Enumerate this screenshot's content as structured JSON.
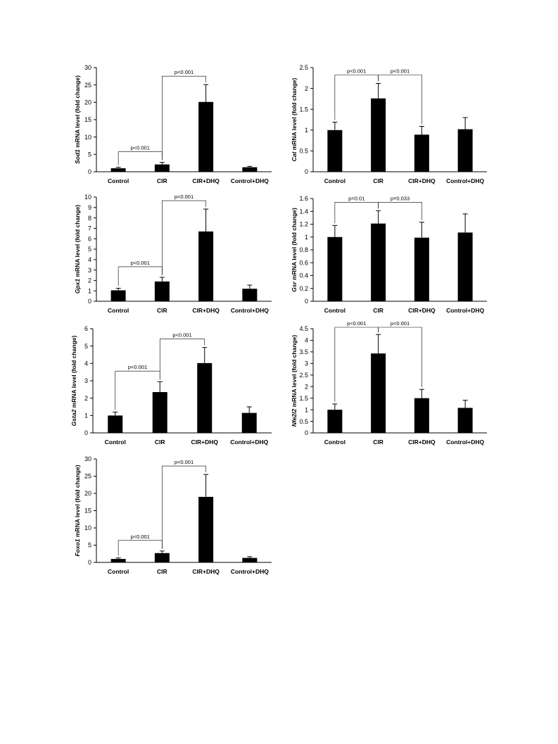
{
  "colors": {
    "bar": "#000000",
    "axis": "#000000",
    "background": "#ffffff"
  },
  "y_label_suffix": " mRNA level (fold change)",
  "chart_data": [
    {
      "type": "bar",
      "gene": "Sod1",
      "categories": [
        "Control",
        "CIR",
        "CIR+DHQ",
        "Control+DHQ"
      ],
      "values": [
        1.0,
        2.1,
        20.1,
        1.3
      ],
      "errors": [
        0.3,
        0.6,
        5.0,
        0.25
      ],
      "ylim": [
        0,
        30
      ],
      "yticks": [
        "0",
        "5",
        "10",
        "15",
        "20",
        "25",
        "30"
      ],
      "comparisons": [
        {
          "from": 0,
          "to": 1,
          "label": "p<0.001"
        },
        {
          "from": 1,
          "to": 2,
          "label": "p<0.001"
        }
      ]
    },
    {
      "type": "bar",
      "gene": "Cat",
      "categories": [
        "Control",
        "CIR",
        "CIR+DHQ",
        "Control+DHQ"
      ],
      "values": [
        1.0,
        1.76,
        0.89,
        1.02
      ],
      "errors": [
        0.19,
        0.36,
        0.2,
        0.28
      ],
      "ylim": [
        0,
        2.5
      ],
      "yticks": [
        "0",
        "0.5",
        "1",
        "1.5",
        "2",
        "2.5"
      ],
      "comparisons": [
        {
          "from": 0,
          "to": 1,
          "label": "p<0.001"
        },
        {
          "from": 1,
          "to": 2,
          "label": "p<0.001"
        }
      ]
    },
    {
      "type": "bar",
      "gene": "Gpx1",
      "categories": [
        "Control",
        "CIR",
        "CIR+DHQ",
        "Control+DHQ"
      ],
      "values": [
        1.05,
        1.9,
        6.7,
        1.2
      ],
      "errors": [
        0.2,
        0.4,
        2.15,
        0.35
      ],
      "ylim": [
        0,
        10
      ],
      "yticks": [
        "0",
        "1",
        "2",
        "3",
        "4",
        "5",
        "6",
        "7",
        "8",
        "9",
        "10"
      ],
      "comparisons": [
        {
          "from": 0,
          "to": 1,
          "label": "p<0.001"
        },
        {
          "from": 1,
          "to": 2,
          "label": "p<0.001"
        }
      ]
    },
    {
      "type": "bar",
      "gene": "Gsr",
      "categories": [
        "Control",
        "CIR",
        "CIR+DHQ",
        "Control+DHQ"
      ],
      "values": [
        1.0,
        1.21,
        0.99,
        1.07
      ],
      "errors": [
        0.18,
        0.2,
        0.24,
        0.29
      ],
      "ylim": [
        0,
        1.6
      ],
      "yticks": [
        "0",
        "0.2",
        "0.4",
        "0.6",
        "0.8",
        "1",
        "1.2",
        "1.4",
        "1.6"
      ],
      "comparisons": [
        {
          "from": 0,
          "to": 1,
          "label": "p=0.01"
        },
        {
          "from": 1,
          "to": 2,
          "label": "p=0.033"
        }
      ]
    },
    {
      "type": "bar",
      "gene": "Gsta2",
      "categories": [
        "Control",
        "CIR",
        "CIR+DHQ",
        "Control+DHQ"
      ],
      "values": [
        1.0,
        2.35,
        4.02,
        1.15
      ],
      "errors": [
        0.2,
        0.6,
        0.9,
        0.35
      ],
      "ylim": [
        0,
        6
      ],
      "yticks": [
        "0",
        "1",
        "2",
        "3",
        "4",
        "5",
        "6"
      ],
      "comparisons": [
        {
          "from": 0,
          "to": 1,
          "label": "p<0.001"
        },
        {
          "from": 1,
          "to": 2,
          "label": "p<0.001"
        }
      ]
    },
    {
      "type": "bar",
      "gene": "Nfe2l2",
      "categories": [
        "Control",
        "CIR",
        "CIR+DHQ",
        "Control+DHQ"
      ],
      "values": [
        1.0,
        3.43,
        1.5,
        1.08
      ],
      "errors": [
        0.25,
        0.82,
        0.38,
        0.33
      ],
      "ylim": [
        0,
        4.5
      ],
      "yticks": [
        "0",
        "0.5",
        "1",
        "1.5",
        "2",
        "2.5",
        "3",
        "3.5",
        "4",
        "4.5"
      ],
      "comparisons": [
        {
          "from": 0,
          "to": 1,
          "label": "p<0.001"
        },
        {
          "from": 1,
          "to": 2,
          "label": "p<0.001"
        }
      ]
    },
    {
      "type": "bar",
      "gene": "Foxo1",
      "categories": [
        "Control",
        "CIR",
        "CIR+DHQ",
        "Control+DHQ"
      ],
      "values": [
        1.0,
        2.7,
        19.0,
        1.3
      ],
      "errors": [
        0.3,
        0.6,
        6.5,
        0.35
      ],
      "ylim": [
        0,
        30
      ],
      "yticks": [
        "0",
        "5",
        "10",
        "15",
        "20",
        "25",
        "30"
      ],
      "comparisons": [
        {
          "from": 0,
          "to": 1,
          "label": "p<0.001"
        },
        {
          "from": 1,
          "to": 2,
          "label": "p<0.001"
        }
      ]
    }
  ]
}
